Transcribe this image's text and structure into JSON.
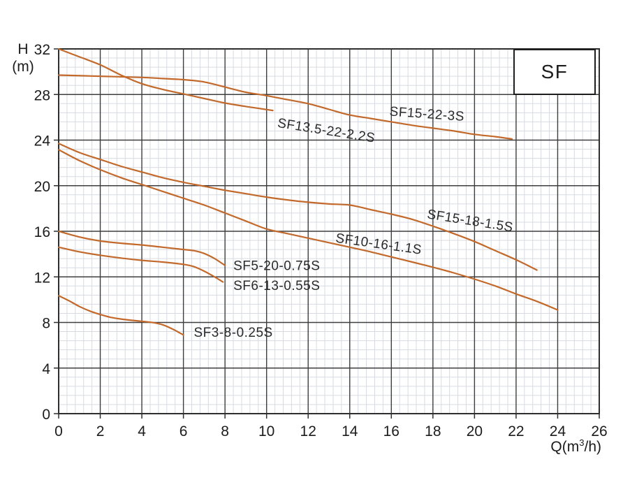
{
  "legend": {
    "title": "SF",
    "position": "top-right"
  },
  "chart_data": {
    "type": "line",
    "x_axis": {
      "label": "Q(m³/h)",
      "label_parts": {
        "pre": "Q(m",
        "sup": "3",
        "post": "/h)"
      },
      "min": 0,
      "max": 26,
      "major_step": 2,
      "minor_divisions": 5,
      "ticks": [
        0,
        2,
        4,
        6,
        8,
        10,
        12,
        14,
        16,
        18,
        20,
        22,
        24,
        26
      ]
    },
    "y_axis": {
      "label_lines": [
        "H",
        "(m)"
      ],
      "min": 0,
      "max": 32,
      "major_step": 4,
      "minor_divisions": 5,
      "ticks": [
        0,
        4,
        8,
        12,
        16,
        20,
        24,
        28,
        32
      ]
    },
    "grid": {
      "visible": true,
      "major_color": "#3e3e3e",
      "minor_color": "#d7dbe1"
    },
    "styles": {
      "curve_color": "#c2692b",
      "curve_width": 2.2,
      "label_color": "#2a2a2a",
      "tick_color": "#1c1c1c",
      "border_color": "#2e2e2e"
    },
    "legend": {
      "title": "SF",
      "position": "top-right"
    },
    "series": [
      {
        "name": "SF13.5-22-2.2S",
        "points": [
          [
            0,
            32
          ],
          [
            1,
            31.3
          ],
          [
            2,
            30.6
          ],
          [
            3,
            29.7
          ],
          [
            4,
            28.95
          ],
          [
            5,
            28.45
          ],
          [
            6,
            28.05
          ],
          [
            7,
            27.65
          ],
          [
            8,
            27.25
          ],
          [
            9,
            26.95
          ],
          [
            10.3,
            26.6
          ]
        ],
        "label": {
          "text": "SF13.5-22-2.2S",
          "x": 10.5,
          "y": 25.15,
          "rotation": 9
        }
      },
      {
        "name": "SF15-22-3S",
        "points": [
          [
            0,
            29.7
          ],
          [
            2,
            29.6
          ],
          [
            4,
            29.5
          ],
          [
            5,
            29.4
          ],
          [
            6,
            29.3
          ],
          [
            7,
            29.1
          ],
          [
            8,
            28.65
          ],
          [
            9,
            28.2
          ],
          [
            10,
            27.9
          ],
          [
            11,
            27.55
          ],
          [
            12,
            27.2
          ],
          [
            13,
            26.7
          ],
          [
            14,
            26.2
          ],
          [
            15,
            25.9
          ],
          [
            16,
            25.6
          ],
          [
            17,
            25.3
          ],
          [
            18,
            25.05
          ],
          [
            19,
            24.8
          ],
          [
            20,
            24.5
          ],
          [
            21,
            24.3
          ],
          [
            21.8,
            24.1
          ]
        ],
        "label": {
          "text": "SF15-22-3S",
          "x": 15.9,
          "y": 26.15,
          "rotation": 4
        }
      },
      {
        "name": "SF15-18-1.5S",
        "points": [
          [
            0,
            23.7
          ],
          [
            1,
            22.9
          ],
          [
            2,
            22.3
          ],
          [
            3,
            21.7
          ],
          [
            4,
            21.2
          ],
          [
            5,
            20.7
          ],
          [
            6,
            20.3
          ],
          [
            7,
            19.95
          ],
          [
            8,
            19.6
          ],
          [
            9,
            19.3
          ],
          [
            10,
            19
          ],
          [
            11,
            18.75
          ],
          [
            12,
            18.55
          ],
          [
            13,
            18.4
          ],
          [
            14,
            18.3
          ],
          [
            15,
            17.9
          ],
          [
            16,
            17.5
          ],
          [
            17,
            17.05
          ],
          [
            18,
            16.45
          ],
          [
            19,
            15.8
          ],
          [
            20,
            15.1
          ],
          [
            21,
            14.3
          ],
          [
            22,
            13.5
          ],
          [
            23,
            12.6
          ]
        ],
        "label": {
          "text": "SF15-18-1.5S",
          "x": 17.7,
          "y": 17.15,
          "rotation": 9
        }
      },
      {
        "name": "SF10-16-1.1S",
        "points": [
          [
            0,
            23.15
          ],
          [
            1,
            22.2
          ],
          [
            2,
            21.4
          ],
          [
            3,
            20.7
          ],
          [
            4,
            20.1
          ],
          [
            5,
            19.5
          ],
          [
            6,
            18.9
          ],
          [
            7,
            18.3
          ],
          [
            8,
            17.6
          ],
          [
            9,
            16.9
          ],
          [
            10,
            16.2
          ],
          [
            11,
            15.8
          ],
          [
            12,
            15.4
          ],
          [
            13,
            15
          ],
          [
            14,
            14.6
          ],
          [
            15,
            14.2
          ],
          [
            16,
            13.75
          ],
          [
            17,
            13.3
          ],
          [
            18,
            12.85
          ],
          [
            19,
            12.35
          ],
          [
            20,
            11.8
          ],
          [
            21,
            11.2
          ],
          [
            22,
            10.5
          ],
          [
            23,
            9.85
          ],
          [
            24,
            9.1
          ]
        ],
        "label": {
          "text": "SF10-16-1.1S",
          "x": 13.3,
          "y": 15.05,
          "rotation": 8
        }
      },
      {
        "name": "SF5-20-0.75S",
        "points": [
          [
            0,
            16
          ],
          [
            1,
            15.5
          ],
          [
            2,
            15.15
          ],
          [
            3,
            14.95
          ],
          [
            4,
            14.8
          ],
          [
            5,
            14.6
          ],
          [
            6,
            14.4
          ],
          [
            6.5,
            14.3
          ],
          [
            7,
            14.05
          ],
          [
            7.5,
            13.6
          ],
          [
            8,
            13
          ]
        ],
        "label": {
          "text": "SF5-20-0.75S",
          "x": 8.4,
          "y": 12.6,
          "rotation": 0
        }
      },
      {
        "name": "SF6-13-0.55S",
        "points": [
          [
            0,
            14.6
          ],
          [
            1,
            14.2
          ],
          [
            2,
            13.9
          ],
          [
            3,
            13.65
          ],
          [
            4,
            13.45
          ],
          [
            5,
            13.3
          ],
          [
            6,
            13.1
          ],
          [
            6.5,
            12.9
          ],
          [
            7,
            12.5
          ],
          [
            7.5,
            12
          ],
          [
            7.9,
            11.55
          ]
        ],
        "label": {
          "text": "SF6-13-0.55S",
          "x": 8.4,
          "y": 10.85,
          "rotation": 0
        }
      },
      {
        "name": "SF3-8-0.25S",
        "points": [
          [
            0,
            10.35
          ],
          [
            0.5,
            9.9
          ],
          [
            1,
            9.4
          ],
          [
            1.5,
            9
          ],
          [
            2,
            8.7
          ],
          [
            2.5,
            8.45
          ],
          [
            3,
            8.3
          ],
          [
            4,
            8.1
          ],
          [
            4.5,
            8
          ],
          [
            5,
            7.8
          ],
          [
            5.5,
            7.4
          ],
          [
            6,
            6.9
          ]
        ],
        "label": {
          "text": "SF3-8-0.25S",
          "x": 6.5,
          "y": 6.75,
          "rotation": 0
        }
      }
    ]
  }
}
